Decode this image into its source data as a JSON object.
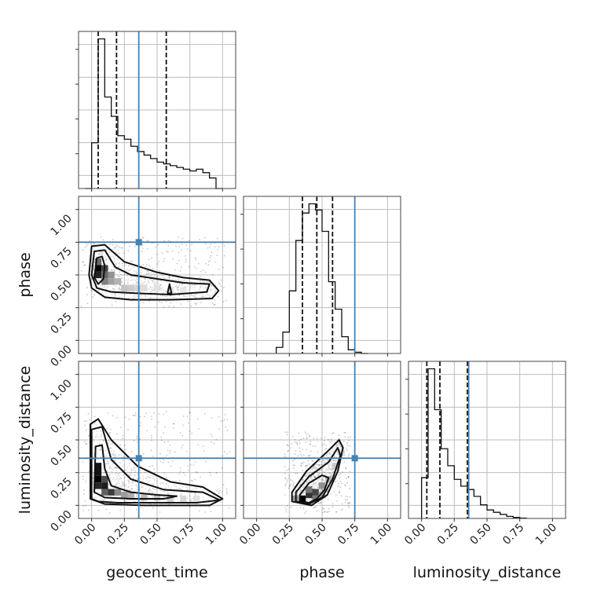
{
  "chart_data": {
    "type": "corner",
    "parameters": [
      "geocent_time",
      "phase",
      "luminosity_distance"
    ],
    "axis_labels": {
      "x": [
        "geocent_time",
        "phase",
        "luminosity_distance"
      ],
      "y": [
        "phase",
        "luminosity_distance"
      ]
    },
    "tick_values": [
      0.0,
      0.25,
      0.5,
      0.75,
      1.0
    ],
    "tick_labels": [
      "0.00",
      "0.25",
      "0.50",
      "0.75",
      "1.00"
    ],
    "axis_range": [
      -0.1,
      1.1
    ],
    "grid": true,
    "injection": {
      "geocent_time": 0.36,
      "phase": 0.75,
      "luminosity_distance": 0.36
    },
    "marginals": {
      "geocent_time": {
        "bin_edges": [
          -0.05,
          0.0,
          0.05,
          0.1,
          0.15,
          0.2,
          0.25,
          0.3,
          0.35,
          0.4,
          0.45,
          0.5,
          0.55,
          0.6,
          0.65,
          0.7,
          0.75,
          0.8,
          0.85,
          0.9,
          0.95,
          1.0
        ],
        "density": [
          0.0,
          1.3,
          4.25,
          2.6,
          2.05,
          1.5,
          1.4,
          1.2,
          1.05,
          0.95,
          0.85,
          0.75,
          0.7,
          0.65,
          0.6,
          0.55,
          0.5,
          0.55,
          0.45,
          0.3,
          0.0
        ],
        "quantiles": [
          0.05,
          0.19,
          0.57
        ]
      },
      "phase": {
        "bin_edges": [
          0.15,
          0.2,
          0.25,
          0.3,
          0.35,
          0.4,
          0.45,
          0.5,
          0.55,
          0.6,
          0.65,
          0.7,
          0.75,
          0.8,
          0.85
        ],
        "density": [
          0.2,
          0.7,
          2.05,
          3.7,
          4.6,
          4.9,
          4.7,
          4.0,
          2.35,
          1.45,
          0.55,
          0.12,
          0.04,
          0.0
        ],
        "quantiles": [
          0.35,
          0.46,
          0.58
        ]
      },
      "luminosity_distance": {
        "bin_edges": [
          0.0,
          0.05,
          0.1,
          0.15,
          0.2,
          0.25,
          0.3,
          0.35,
          0.4,
          0.45,
          0.5,
          0.55,
          0.6,
          0.65,
          0.7,
          0.75,
          0.8
        ],
        "density": [
          1.2,
          4.4,
          3.2,
          2.05,
          1.55,
          1.15,
          0.95,
          0.85,
          0.65,
          0.4,
          0.25,
          0.18,
          0.12,
          0.06,
          0.03,
          0.01
        ],
        "quantiles": [
          0.04,
          0.14,
          0.35
        ]
      }
    },
    "joint": [
      {
        "x_param": "geocent_time",
        "y_param": "phase",
        "samples_center": [
          0.1,
          0.55
        ],
        "density_cells": [
          {
            "x": 0.05,
            "y": 0.55,
            "w": 3
          },
          {
            "x": 0.05,
            "y": 0.5,
            "w": 2.6
          },
          {
            "x": 0.05,
            "y": 0.6,
            "w": 1.8
          },
          {
            "x": 0.1,
            "y": 0.55,
            "w": 2.2
          },
          {
            "x": 0.1,
            "y": 0.5,
            "w": 1.8
          },
          {
            "x": 0.1,
            "y": 0.45,
            "w": 1.5
          },
          {
            "x": 0.15,
            "y": 0.5,
            "w": 1.3
          },
          {
            "x": 0.15,
            "y": 0.45,
            "w": 1.1
          },
          {
            "x": 0.2,
            "y": 0.45,
            "w": 0.9
          },
          {
            "x": 0.25,
            "y": 0.4,
            "w": 0.7
          },
          {
            "x": 0.3,
            "y": 0.4,
            "w": 0.6
          },
          {
            "x": 0.35,
            "y": 0.4,
            "w": 0.5
          },
          {
            "x": 0.4,
            "y": 0.4,
            "w": 0.4
          },
          {
            "x": 0.5,
            "y": 0.4,
            "w": 0.35
          },
          {
            "x": 0.6,
            "y": 0.38,
            "w": 0.35
          },
          {
            "x": 0.7,
            "y": 0.38,
            "w": 0.3
          }
        ],
        "contours": [
          [
            [
              0.02,
              0.48
            ],
            [
              0.04,
              0.63
            ],
            [
              0.08,
              0.64
            ],
            [
              0.1,
              0.57
            ],
            [
              0.09,
              0.47
            ],
            [
              0.05,
              0.43
            ]
          ],
          [
            [
              0.0,
              0.5
            ],
            [
              0.02,
              0.68
            ],
            [
              0.1,
              0.69
            ],
            [
              0.18,
              0.56
            ],
            [
              0.3,
              0.5
            ],
            [
              0.5,
              0.47
            ],
            [
              0.7,
              0.44
            ],
            [
              0.9,
              0.43
            ],
            [
              0.88,
              0.37
            ],
            [
              0.6,
              0.35
            ],
            [
              0.35,
              0.36
            ],
            [
              0.15,
              0.37
            ],
            [
              0.04,
              0.4
            ]
          ],
          [
            [
              -0.02,
              0.5
            ],
            [
              0.0,
              0.72
            ],
            [
              0.1,
              0.73
            ],
            [
              0.25,
              0.6
            ],
            [
              0.5,
              0.52
            ],
            [
              0.7,
              0.48
            ],
            [
              0.9,
              0.46
            ],
            [
              0.97,
              0.38
            ],
            [
              0.92,
              0.32
            ],
            [
              0.6,
              0.31
            ],
            [
              0.3,
              0.31
            ],
            [
              0.1,
              0.33
            ],
            [
              0.0,
              0.4
            ]
          ],
          [
            [
              0.58,
              0.36
            ],
            [
              0.595,
              0.43
            ],
            [
              0.61,
              0.36
            ]
          ]
        ]
      },
      {
        "x_param": "geocent_time",
        "y_param": "luminosity_distance",
        "samples_center": [
          0.08,
          0.25
        ],
        "density_cells": [
          {
            "x": 0.05,
            "y": 0.3,
            "w": 2.4
          },
          {
            "x": 0.05,
            "y": 0.25,
            "w": 2.4
          },
          {
            "x": 0.05,
            "y": 0.2,
            "w": 2.6
          },
          {
            "x": 0.05,
            "y": 0.15,
            "w": 2.2
          },
          {
            "x": 0.1,
            "y": 0.2,
            "w": 1.8
          },
          {
            "x": 0.1,
            "y": 0.15,
            "w": 2.3
          },
          {
            "x": 0.15,
            "y": 0.1,
            "w": 2.0
          },
          {
            "x": 0.1,
            "y": 0.1,
            "w": 1.6
          },
          {
            "x": 0.2,
            "y": 0.1,
            "w": 1.2
          },
          {
            "x": 0.25,
            "y": 0.08,
            "w": 1.0
          },
          {
            "x": 0.3,
            "y": 0.08,
            "w": 0.8
          },
          {
            "x": 0.4,
            "y": 0.06,
            "w": 0.7
          },
          {
            "x": 0.5,
            "y": 0.06,
            "w": 0.6
          },
          {
            "x": 0.6,
            "y": 0.05,
            "w": 0.5
          },
          {
            "x": 0.7,
            "y": 0.05,
            "w": 0.4
          },
          {
            "x": 0.8,
            "y": 0.05,
            "w": 0.3
          }
        ],
        "contours": [
          [
            [
              0.02,
              0.1
            ],
            [
              0.03,
              0.45
            ],
            [
              0.08,
              0.46
            ],
            [
              0.1,
              0.28
            ],
            [
              0.15,
              0.15
            ],
            [
              0.3,
              0.1
            ],
            [
              0.5,
              0.08
            ],
            [
              0.65,
              0.07
            ],
            [
              0.55,
              0.05
            ],
            [
              0.3,
              0.05
            ],
            [
              0.1,
              0.06
            ]
          ],
          [
            [
              0.0,
              0.05
            ],
            [
              0.0,
              0.58
            ],
            [
              0.08,
              0.6
            ],
            [
              0.15,
              0.35
            ],
            [
              0.3,
              0.2
            ],
            [
              0.55,
              0.12
            ],
            [
              0.85,
              0.1
            ],
            [
              0.98,
              0.04
            ],
            [
              0.8,
              0.02
            ],
            [
              0.5,
              0.02
            ],
            [
              0.2,
              0.02
            ],
            [
              0.05,
              0.03
            ]
          ],
          [
            [
              -0.01,
              0.05
            ],
            [
              -0.01,
              0.62
            ],
            [
              0.05,
              0.66
            ],
            [
              0.15,
              0.5
            ],
            [
              0.35,
              0.3
            ],
            [
              0.6,
              0.18
            ],
            [
              0.85,
              0.14
            ],
            [
              1.0,
              0.05
            ],
            [
              0.9,
              0.0
            ],
            [
              0.4,
              0.0
            ],
            [
              0.1,
              0.01
            ]
          ]
        ]
      },
      {
        "x_param": "phase",
        "y_param": "luminosity_distance",
        "samples_center": [
          0.45,
          0.15
        ],
        "density_cells": [
          {
            "x": 0.35,
            "y": 0.05,
            "w": 3
          },
          {
            "x": 0.4,
            "y": 0.08,
            "w": 2.4
          },
          {
            "x": 0.45,
            "y": 0.1,
            "w": 2.2
          },
          {
            "x": 0.45,
            "y": 0.05,
            "w": 1.6
          },
          {
            "x": 0.4,
            "y": 0.12,
            "w": 1.6
          },
          {
            "x": 0.5,
            "y": 0.15,
            "w": 1.3
          },
          {
            "x": 0.5,
            "y": 0.08,
            "w": 1.0
          },
          {
            "x": 0.55,
            "y": 0.2,
            "w": 0.9
          },
          {
            "x": 0.3,
            "y": 0.05,
            "w": 1.2
          },
          {
            "x": 0.6,
            "y": 0.3,
            "w": 0.6
          },
          {
            "x": 0.65,
            "y": 0.4,
            "w": 0.4
          }
        ],
        "contours": [
          [
            [
              0.34,
              0.03
            ],
            [
              0.33,
              0.08
            ],
            [
              0.4,
              0.17
            ],
            [
              0.5,
              0.23
            ],
            [
              0.55,
              0.21
            ],
            [
              0.52,
              0.12
            ],
            [
              0.46,
              0.05
            ],
            [
              0.4,
              0.02
            ]
          ],
          [
            [
              0.3,
              0.03
            ],
            [
              0.3,
              0.1
            ],
            [
              0.4,
              0.22
            ],
            [
              0.55,
              0.33
            ],
            [
              0.62,
              0.44
            ],
            [
              0.64,
              0.38
            ],
            [
              0.58,
              0.2
            ],
            [
              0.5,
              0.06
            ],
            [
              0.4,
              0.01
            ]
          ],
          [
            [
              0.27,
              0.03
            ],
            [
              0.27,
              0.1
            ],
            [
              0.38,
              0.26
            ],
            [
              0.55,
              0.42
            ],
            [
              0.63,
              0.5
            ],
            [
              0.66,
              0.44
            ],
            [
              0.62,
              0.26
            ],
            [
              0.54,
              0.08
            ],
            [
              0.42,
              0.0
            ]
          ]
        ]
      }
    ]
  }
}
